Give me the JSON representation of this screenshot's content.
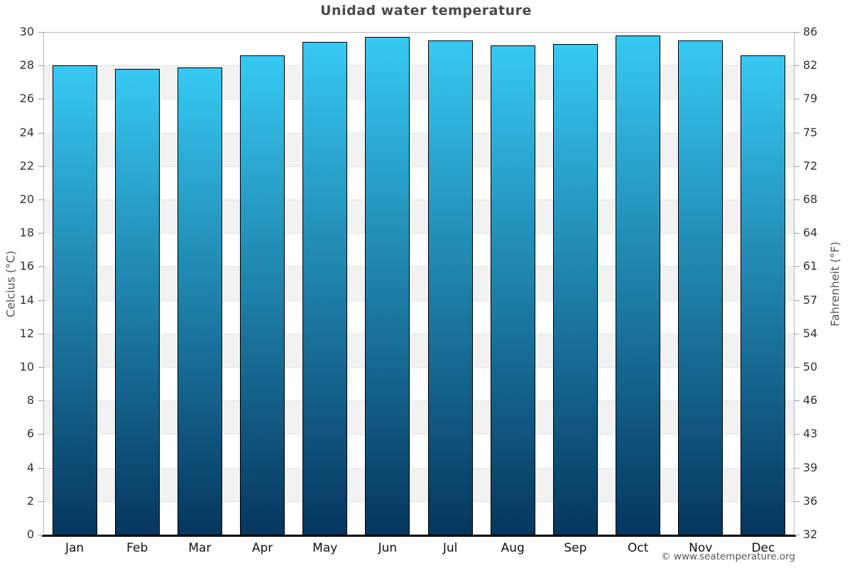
{
  "title": "Unidad water temperature",
  "footer": "© www.seatemperature.org",
  "chart_data": {
    "type": "bar",
    "title": "Unidad water temperature",
    "categories": [
      "Jan",
      "Feb",
      "Mar",
      "Apr",
      "May",
      "Jun",
      "Jul",
      "Aug",
      "Sep",
      "Oct",
      "Nov",
      "Dec"
    ],
    "values": [
      28.0,
      27.8,
      27.9,
      28.6,
      29.4,
      29.7,
      29.5,
      29.2,
      29.3,
      29.8,
      29.5,
      28.6
    ],
    "unit": "°C",
    "ylabel_left": "Celcius (°C)",
    "ylabel_right": "Fahrenheit (°F)",
    "ylim": [
      0,
      30
    ],
    "celsius_ticks": [
      0,
      2,
      4,
      6,
      8,
      10,
      12,
      14,
      16,
      18,
      20,
      22,
      24,
      26,
      28,
      30
    ],
    "fahrenheit_ticks": [
      32,
      36,
      39,
      43,
      46,
      50,
      54,
      57,
      61,
      64,
      68,
      72,
      75,
      79,
      82,
      86
    ],
    "grid": "alternating horizontal bands every 2°C",
    "legend": "none",
    "colors": {
      "bar_gradient_top": "#36c9f3",
      "bar_gradient_bottom": "#05365e",
      "bar_border": "#000000",
      "band_gray": "#f2f2f2",
      "title_text": "#4a4a4a",
      "axis_text": "#333333"
    }
  }
}
